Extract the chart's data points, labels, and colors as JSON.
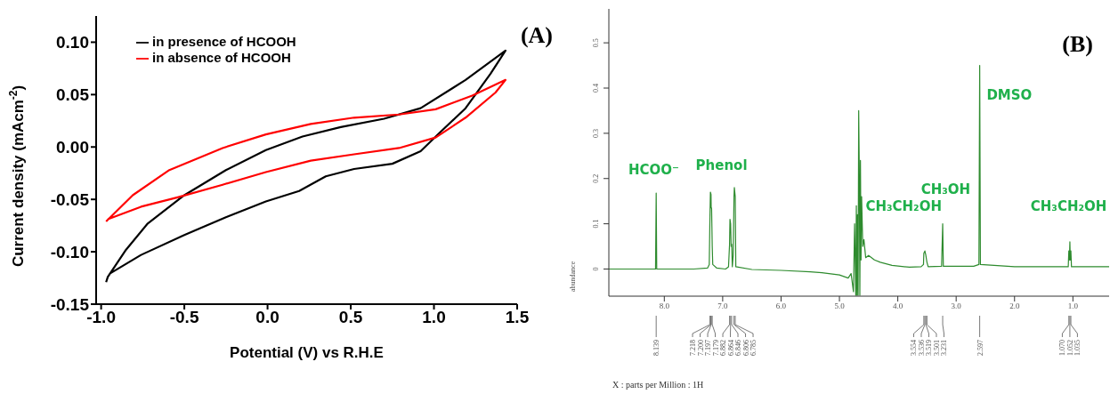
{
  "chart_data": [
    {
      "type": "line",
      "title": "(A)",
      "xlabel": "Potential (V) vs R.H.E",
      "ylabel": "Current density (mAcm$^{-2}$)",
      "xlim": [
        -1.03,
        1.5
      ],
      "ylim": [
        -0.15,
        0.125
      ],
      "xticks": [
        {
          "value": -1,
          "label": "-1.0"
        },
        {
          "value": -0.5,
          "label": "-0.5"
        },
        {
          "value": 0,
          "label": "0.0"
        },
        {
          "value": 0.5,
          "label": "0.5"
        },
        {
          "value": 1,
          "label": "1.0"
        },
        {
          "value": 1.5,
          "label": "1.5"
        }
      ],
      "yticks": [
        {
          "value": -0.15,
          "label": "-0.15"
        },
        {
          "value": -0.1,
          "label": "-0.10"
        },
        {
          "value": -0.05,
          "label": "-0.05"
        },
        {
          "value": 0,
          "label": "0.00"
        },
        {
          "value": 0.05,
          "label": "0.05"
        },
        {
          "value": 0.1,
          "label": "0.10"
        }
      ],
      "legend": "top left",
      "marker": "none",
      "line_style": "solid",
      "series": [
        {
          "name": "in presence of HCOOH",
          "color": "#000000",
          "x": [
            -0.97,
            -0.96,
            -0.85,
            -0.72,
            -0.5,
            -0.25,
            -0.01,
            0.21,
            0.44,
            0.7,
            0.92,
            1.19,
            1.43,
            1.34,
            1.19,
            1.03,
            0.92,
            0.75,
            0.52,
            0.35,
            0.19,
            -0.01,
            -0.25,
            -0.5,
            -0.76,
            -0.95
          ],
          "values": [
            -0.129,
            -0.124,
            -0.098,
            -0.073,
            -0.046,
            -0.022,
            -0.003,
            0.01,
            0.019,
            0.027,
            0.037,
            0.064,
            0.092,
            0.07,
            0.037,
            0.013,
            -0.004,
            -0.016,
            -0.021,
            -0.028,
            -0.042,
            -0.052,
            -0.067,
            -0.084,
            -0.103,
            -0.121
          ]
        },
        {
          "name": "in absence of HCOOH",
          "color": "#ff0000",
          "x": [
            -0.97,
            -0.81,
            -0.59,
            -0.27,
            -0.01,
            0.26,
            0.52,
            0.79,
            1.01,
            1.23,
            1.43,
            1.37,
            1.19,
            1.01,
            0.79,
            0.52,
            0.26,
            -0.01,
            -0.27,
            -0.54,
            -0.76,
            -0.96
          ],
          "values": [
            -0.071,
            -0.046,
            -0.022,
            -0.001,
            0.012,
            0.022,
            0.028,
            0.031,
            0.036,
            0.049,
            0.064,
            0.052,
            0.028,
            0.009,
            -0.001,
            -0.007,
            -0.013,
            -0.024,
            -0.036,
            -0.048,
            -0.057,
            -0.069
          ]
        }
      ]
    },
    {
      "type": "line",
      "title": "(B)",
      "xlabel": "X : parts per Million : 1H",
      "ylabel": "abundance",
      "xlim": [
        8.95,
        0.38
      ],
      "ylim": [
        -0.06,
        0.575
      ],
      "xticks": [
        {
          "value": 8,
          "label": "8.0"
        },
        {
          "value": 7,
          "label": "7.0"
        },
        {
          "value": 6,
          "label": "6.0"
        },
        {
          "value": 5,
          "label": "5.0"
        },
        {
          "value": 4,
          "label": "4.0"
        },
        {
          "value": 3,
          "label": "3.0"
        },
        {
          "value": 2,
          "label": "2.0"
        },
        {
          "value": 1,
          "label": "1.0"
        }
      ],
      "yticks": [
        0,
        0.1,
        0.2,
        0.3,
        0.4,
        0.5
      ],
      "marker": "none",
      "line_style": "solid",
      "series": [
        {
          "color": "#2e8b2e",
          "x": [
            8.95,
            8.2,
            8.15,
            8.139,
            8.13,
            7.5,
            7.26,
            7.23,
            7.218,
            7.21,
            7.2,
            7.197,
            7.19,
            7.179,
            7.17,
            7.1,
            6.95,
            6.9,
            6.882,
            6.875,
            6.864,
            6.855,
            6.846,
            6.835,
            6.82,
            6.806,
            6.8,
            6.785,
            6.775,
            6.5,
            6,
            5.5,
            5.3,
            5,
            4.85,
            4.8,
            4.78,
            4.76,
            4.74,
            4.72,
            4.71,
            4.7,
            4.69,
            4.68,
            4.67,
            4.66,
            4.65,
            4.64,
            4.63,
            4.62,
            4.6,
            4.58,
            4.55,
            4.5,
            4.4,
            4.3,
            4.1,
            3.8,
            3.6,
            3.56,
            3.554,
            3.536,
            3.519,
            3.501,
            3.48,
            3.25,
            3.231,
            3.22,
            2.7,
            2.61,
            2.597,
            2.585,
            2,
            1.2,
            1.08,
            1.07,
            1.06,
            1.052,
            1.045,
            1.035,
            1.025,
            0.38
          ],
          "values": [
            0,
            0,
            0,
            0.168,
            0,
            0,
            0.002,
            0.01,
            0.115,
            0.17,
            0.165,
            0.135,
            0.135,
            0.05,
            0.01,
            0.002,
            0,
            0.005,
            0.055,
            0.11,
            0.1,
            0.05,
            0.055,
            0.005,
            0.03,
            0.16,
            0.18,
            0.16,
            0.005,
            -0.001,
            -0.003,
            -0.006,
            -0.008,
            -0.013,
            -0.02,
            -0.01,
            -0.03,
            -0.05,
            0.1,
            -0.058,
            0.14,
            -0.058,
            0.12,
            -0.058,
            0.35,
            0.22,
            -0.058,
            0.24,
            0.02,
            0.16,
            0.05,
            0.065,
            0.025,
            0.03,
            0.02,
            0.015,
            0.008,
            0.004,
            0.005,
            0.01,
            0.035,
            0.04,
            0.03,
            0.015,
            0.005,
            0.006,
            0.1,
            0.006,
            0.006,
            0.01,
            0.45,
            0.01,
            0.005,
            0.005,
            0.005,
            0.04,
            0.02,
            0.06,
            0.02,
            0.04,
            0.005,
            0.005
          ]
        }
      ],
      "annotations": [
        "HCOO⁻",
        "Phenol",
        "CH₃CH₂OH",
        "CH₃OH",
        "DMSO",
        "CH₃CH₂OH",
        {
          "text": "8.139",
          "x": 8.139
        },
        {
          "text": "7.218",
          "x": 7.218
        },
        {
          "text": "7.200",
          "x": 7.2
        },
        {
          "text": "7.197",
          "x": 7.197
        },
        {
          "text": "7.179",
          "x": 7.179
        },
        {
          "text": "6.882",
          "x": 6.882
        },
        {
          "text": "6.864",
          "x": 6.864
        },
        {
          "text": "6.846",
          "x": 6.846
        },
        {
          "text": "6.806",
          "x": 6.806
        },
        {
          "text": "6.785",
          "x": 6.785
        },
        {
          "text": "3.554",
          "x": 3.554
        },
        {
          "text": "3.536",
          "x": 3.536
        },
        {
          "text": "3.519",
          "x": 3.519
        },
        {
          "text": "3.501",
          "x": 3.501
        },
        {
          "text": "3.231",
          "x": 3.231
        },
        {
          "text": "2.597",
          "x": 2.597
        },
        {
          "text": "1.070",
          "x": 1.07
        },
        {
          "text": "1.052",
          "x": 1.052
        },
        {
          "text": "1.035",
          "x": 1.035
        }
      ]
    }
  ]
}
